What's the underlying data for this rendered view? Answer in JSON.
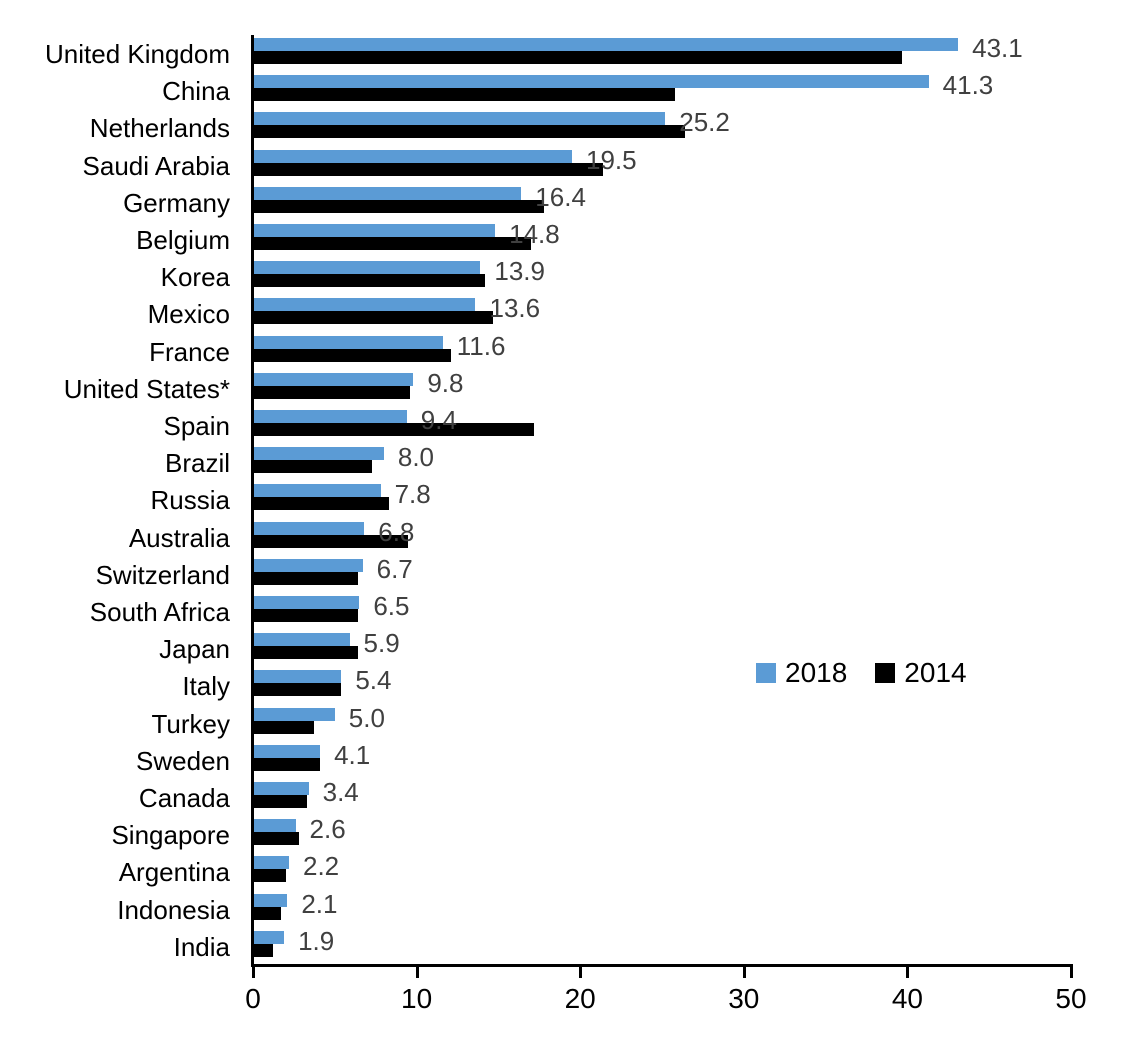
{
  "chart_data": {
    "type": "bar",
    "orientation": "horizontal",
    "title": "",
    "xlabel": "",
    "ylabel": "",
    "xlim": [
      0,
      50
    ],
    "x_ticks": [
      0,
      10,
      20,
      30,
      40,
      50
    ],
    "grid": false,
    "legend_position": "center-right-inside",
    "value_labels": {
      "series": "2018",
      "color": "#404040",
      "decimals": 1
    },
    "categories": [
      "United Kingdom",
      "China",
      "Netherlands",
      "Saudi Arabia",
      "Germany",
      "Belgium",
      "Korea",
      "Mexico",
      "France",
      "United States*",
      "Spain",
      "Brazil",
      "Russia",
      "Australia",
      "Switzerland",
      "South Africa",
      "Japan",
      "Italy",
      "Turkey",
      "Sweden",
      "Canada",
      "Singapore",
      "Argentina",
      "Indonesia",
      "India"
    ],
    "series": [
      {
        "name": "2018",
        "color": "#5B9BD5",
        "values": [
          43.1,
          41.3,
          25.2,
          19.5,
          16.4,
          14.8,
          13.9,
          13.6,
          11.6,
          9.8,
          9.4,
          8.0,
          7.8,
          6.8,
          6.7,
          6.5,
          5.9,
          5.4,
          5.0,
          4.1,
          3.4,
          2.6,
          2.2,
          2.1,
          1.9
        ]
      },
      {
        "name": "2014",
        "color": "#000000",
        "values": [
          39.7,
          25.8,
          26.4,
          21.4,
          17.8,
          17.0,
          14.2,
          14.7,
          12.1,
          9.6,
          17.2,
          7.3,
          8.3,
          9.5,
          6.4,
          6.4,
          6.4,
          5.4,
          3.7,
          4.1,
          3.3,
          2.8,
          2.0,
          1.7,
          1.2
        ]
      }
    ]
  },
  "colors": {
    "axis": "#000000",
    "category_text": "#000000",
    "tick_text": "#000000",
    "value_label_text": "#404040",
    "background": "#ffffff"
  }
}
